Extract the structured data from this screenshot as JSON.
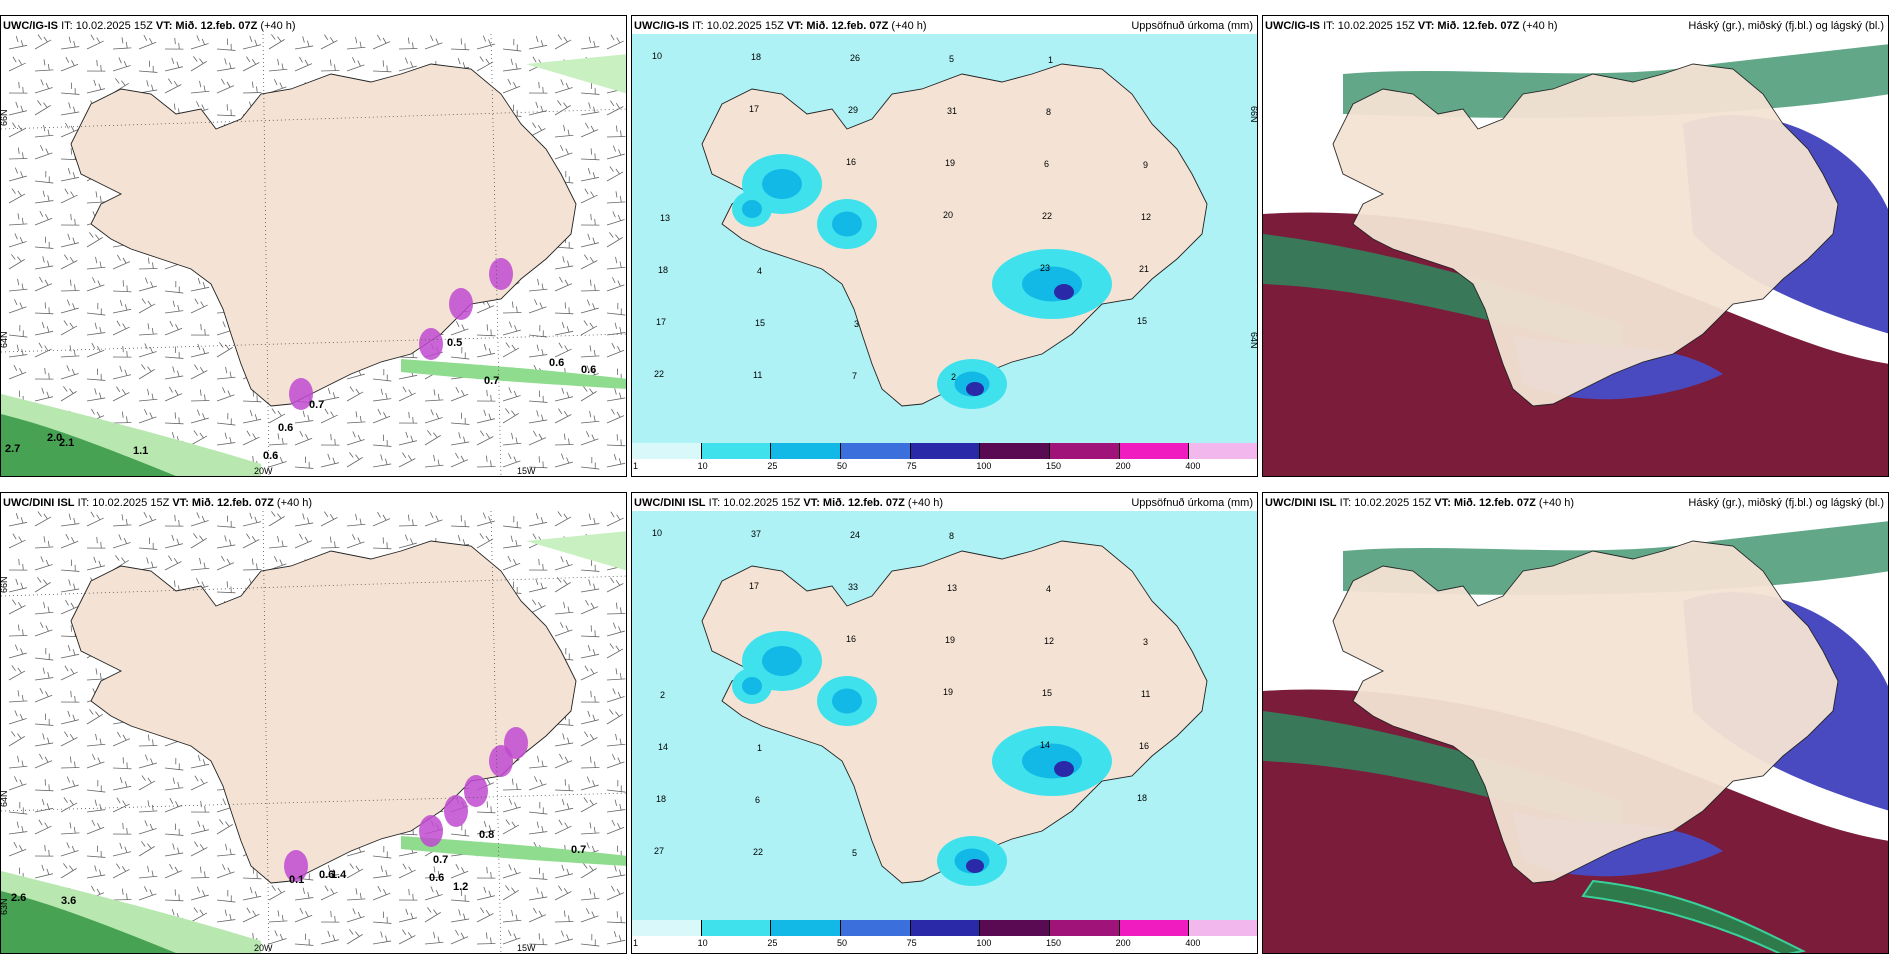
{
  "colors": {
    "land": "#f4e3d4",
    "precip_light": "#aef2f6",
    "precip_cyan": "#3fe2ec",
    "precip_mid": "#12b8e6",
    "precip_blue": "#3b6fdc",
    "precip_dark": "#2a2aa8",
    "precip_purple": "#7a0a62",
    "cloud_high": "#2e8a60",
    "cloud_mid": "#7a1c3a",
    "cloud_low": "#4a4ac0",
    "wind_green": "#8fdc8f",
    "snow_magenta": "#c04ad0"
  },
  "panels": [
    {
      "id": "top-left",
      "model": "UWC/IG-IS",
      "init": "IT: 10.02.2025 15Z",
      "valid_prefix": "VT:",
      "valid": "Mið. 12.feb. 07Z",
      "lead": "(+40 h)",
      "right_title": "",
      "lat_labels": [
        "66N",
        "64N"
      ],
      "lon_labels": [
        "20W",
        "15W"
      ],
      "values": [
        "0.5",
        "0.6",
        "0.6",
        "0.7",
        "0.7",
        "0.6",
        "0.6",
        "2.7",
        "2.0",
        "2.1",
        "1.1"
      ]
    },
    {
      "id": "top-middle",
      "model": "UWC/IG-IS",
      "init": "IT: 10.02.2025 15Z",
      "valid_prefix": "VT:",
      "valid": "Mið. 12.feb. 07Z",
      "lead": "(+40 h)",
      "right_title": "Uppsöfnuð úrkoma (mm)",
      "lat_labels": [
        "66N",
        "64N"
      ],
      "lon_labels": [],
      "values": [
        "10",
        "17",
        "16",
        "20",
        "23",
        "15",
        "22",
        "18",
        "29",
        "19",
        "22",
        "21",
        "17",
        "11",
        "26",
        "31",
        "6",
        "12",
        "18",
        "15",
        "7",
        "5",
        "8",
        "9",
        "13",
        "4",
        "3",
        "2",
        "1"
      ],
      "colorbar": {
        "ticks": [
          "1",
          "10",
          "25",
          "50",
          "75",
          "100",
          "150",
          "200",
          "400"
        ],
        "colors": [
          "#d8f8fa",
          "#3fe2ec",
          "#12b8e6",
          "#3b6fdc",
          "#2a2aa8",
          "#5a0a52",
          "#a0147a",
          "#f01cc0",
          "#f2b8ee"
        ]
      }
    },
    {
      "id": "top-right",
      "model": "UWC/IG-IS",
      "init": "IT: 10.02.2025 15Z",
      "valid_prefix": "VT:",
      "valid": "Mið. 12.feb. 07Z",
      "lead": "(+40 h)",
      "right_title": "Háský (gr.), miðský (fj.bl.) og lágský (bl.)"
    },
    {
      "id": "bottom-left",
      "model": "UWC/DINI ISL",
      "init": "IT: 10.02.2025 15Z",
      "valid_prefix": "VT:",
      "valid": "Mið. 12.feb. 07Z",
      "lead": "(+40 h)",
      "right_title": "",
      "lat_labels": [
        "66N",
        "64N",
        "63N"
      ],
      "lon_labels": [
        "20W",
        "15W"
      ],
      "values": [
        "0.8",
        "0.7",
        "0.7",
        "0.6",
        "1.2",
        "2.6",
        "3.6",
        "1.4",
        "0.6",
        "0.1"
      ]
    },
    {
      "id": "bottom-middle",
      "model": "UWC/DINI ISL",
      "init": "IT: 10.02.2025 15Z",
      "valid_prefix": "VT:",
      "valid": "Mið. 12.feb. 07Z",
      "lead": "(+40 h)",
      "right_title": "Uppsöfnuð úrkoma (mm)",
      "lat_labels": [],
      "lon_labels": [],
      "values": [
        "10",
        "17",
        "16",
        "19",
        "14",
        "18",
        "27",
        "37",
        "33",
        "19",
        "15",
        "16",
        "18",
        "22",
        "24",
        "13",
        "12",
        "11",
        "14",
        "6",
        "5",
        "8",
        "4",
        "3",
        "2",
        "1"
      ],
      "colorbar": {
        "ticks": [
          "1",
          "10",
          "25",
          "50",
          "75",
          "100",
          "150",
          "200",
          "400"
        ],
        "colors": [
          "#d8f8fa",
          "#3fe2ec",
          "#12b8e6",
          "#3b6fdc",
          "#2a2aa8",
          "#5a0a52",
          "#a0147a",
          "#f01cc0",
          "#f2b8ee"
        ]
      }
    },
    {
      "id": "bottom-right",
      "model": "UWC/DINI ISL",
      "init": "IT: 10.02.2025 15Z",
      "valid_prefix": "VT:",
      "valid": "Mið. 12.feb. 07Z",
      "lead": "(+40 h)",
      "right_title": "Háský (gr.), miðský (fj.bl.) og lágský (bl.)"
    }
  ]
}
